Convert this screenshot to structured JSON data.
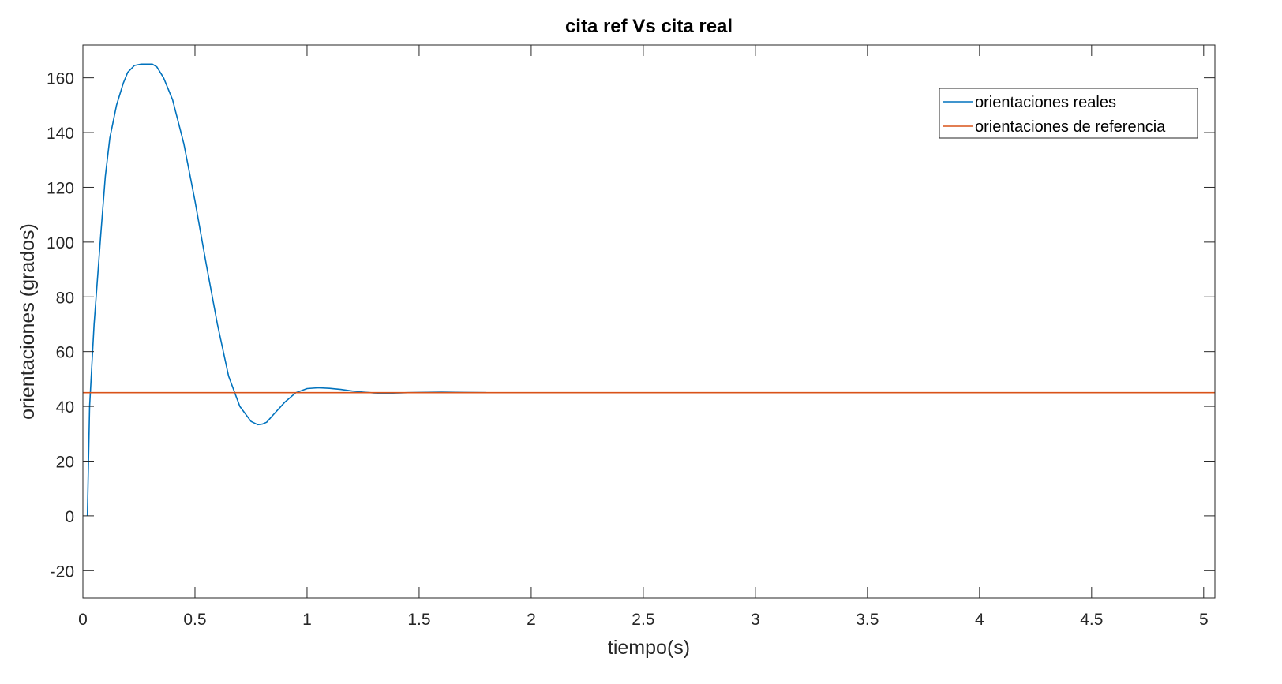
{
  "chart_data": {
    "type": "line",
    "title": "cita ref Vs cita real",
    "xlabel": "tiempo(s)",
    "ylabel": "orientaciones (grados)",
    "xlim": [
      0,
      5.05
    ],
    "ylim": [
      -30,
      172
    ],
    "xticks": [
      0,
      0.5,
      1,
      1.5,
      2,
      2.5,
      3,
      3.5,
      4,
      4.5,
      5
    ],
    "xtick_labels": [
      "0",
      "0.5",
      "1",
      "1.5",
      "2",
      "2.5",
      "3",
      "3.5",
      "4",
      "4.5",
      "5"
    ],
    "yticks": [
      -20,
      0,
      20,
      40,
      60,
      80,
      100,
      120,
      140,
      160
    ],
    "ytick_labels": [
      "-20",
      "0",
      "20",
      "40",
      "60",
      "80",
      "100",
      "120",
      "140",
      "160"
    ],
    "grid": false,
    "legend_position": "top-right",
    "series": [
      {
        "name": "orientaciones reales",
        "color": "#0072BD",
        "x": [
          0.02,
          0.03,
          0.05,
          0.08,
          0.1,
          0.12,
          0.15,
          0.18,
          0.2,
          0.23,
          0.26,
          0.29,
          0.31,
          0.33,
          0.36,
          0.4,
          0.45,
          0.5,
          0.55,
          0.6,
          0.65,
          0.7,
          0.75,
          0.78,
          0.8,
          0.82,
          0.85,
          0.9,
          0.95,
          1.0,
          1.05,
          1.1,
          1.15,
          1.2,
          1.25,
          1.3,
          1.35,
          1.4,
          1.45,
          1.5,
          1.6,
          1.7,
          1.8
        ],
        "y": [
          0,
          40,
          70,
          103,
          124,
          138,
          150,
          158,
          162,
          164.5,
          165,
          165,
          165,
          164,
          160,
          152,
          136,
          115,
          92,
          70,
          51,
          40,
          34.5,
          33.3,
          33.5,
          34.2,
          37,
          41.5,
          45,
          46.5,
          46.8,
          46.6,
          46.2,
          45.6,
          45.2,
          44.9,
          44.8,
          44.9,
          45,
          45.1,
          45.2,
          45.1,
          45.0
        ]
      },
      {
        "name": "orientaciones de referencia",
        "color": "#D95319",
        "x": [
          0,
          5.05
        ],
        "y": [
          45,
          45
        ]
      }
    ]
  }
}
